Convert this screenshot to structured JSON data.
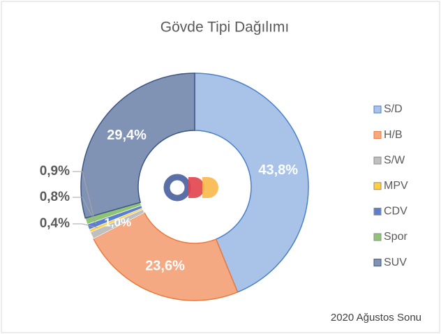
{
  "chart_data": {
    "type": "donut",
    "title": "Gövde Tipi Dağılımı",
    "categories": [
      "S/D",
      "H/B",
      "S/W",
      "MPV",
      "CDV",
      "Spor",
      "SUV"
    ],
    "values": [
      43.8,
      23.6,
      1.0,
      0.4,
      0.8,
      0.9,
      29.4
    ],
    "value_labels": [
      "43,8%",
      "23,6%",
      "1,0%",
      "0,4%",
      "0,8%",
      "0,9%",
      "29,4%"
    ],
    "colors": [
      "#a9c3e8",
      "#f4a983",
      "#bfbfbf",
      "#ffcf3f",
      "#5b7ed0",
      "#8fc474",
      "#8193b5"
    ],
    "legend": "right",
    "annotation": "2020 Ağustos Sonu"
  }
}
